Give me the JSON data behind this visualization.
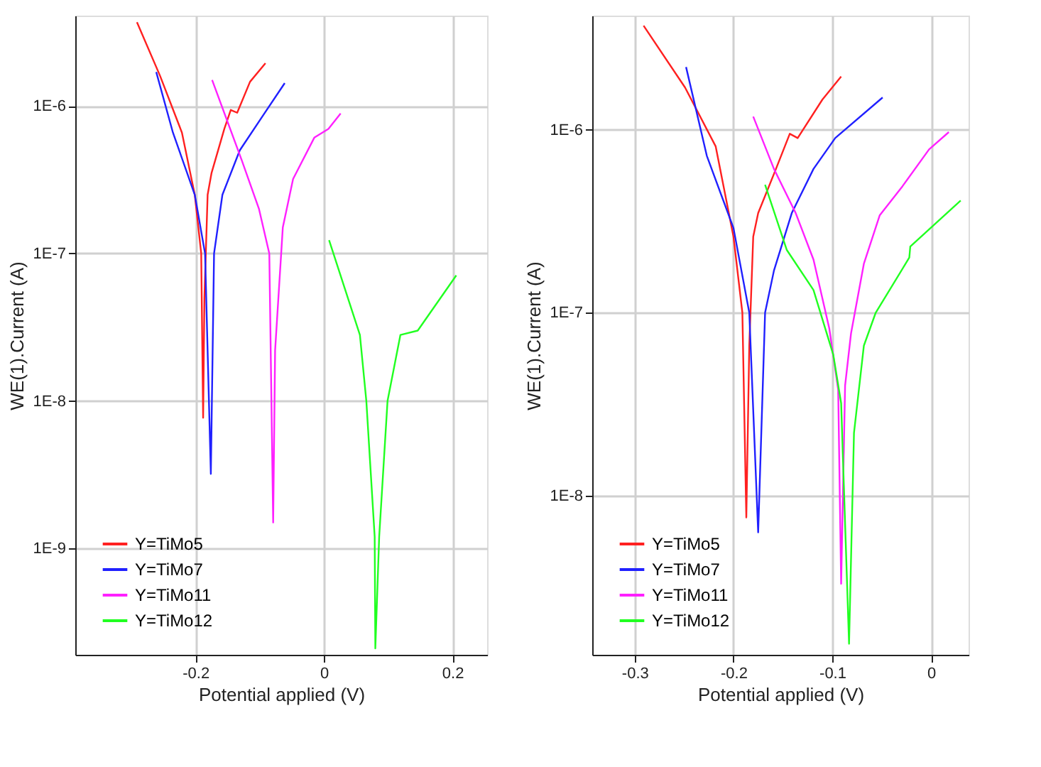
{
  "chart_data": [
    {
      "type": "line",
      "xlabel": "Potential applied (V)",
      "ylabel": "WE(1).Current (A)",
      "log": "y",
      "grid": true,
      "legend": "bottom left",
      "xlim": [
        -0.387,
        0.254
      ],
      "ylim": [
        1.9e-10,
        4.1e-06
      ],
      "xticks": [
        -0.2,
        0,
        0.2
      ],
      "yticks": [
        {
          "value": 1e-09,
          "label": "1E-9"
        },
        {
          "value": 1e-08,
          "label": "1E-8"
        },
        {
          "value": 1e-07,
          "label": "1E-7"
        },
        {
          "value": 1e-06,
          "label": "1E-6"
        }
      ],
      "series": [
        {
          "name": "Y=TiMo5",
          "color": "#ff2020",
          "x": [
            -0.291,
            -0.255,
            -0.221,
            -0.201,
            -0.191,
            -0.188,
            -0.186,
            -0.181,
            -0.175,
            -0.155,
            -0.145,
            -0.135,
            -0.115,
            -0.091
          ],
          "values": [
            3.7e-06,
            1.6e-06,
            6.6e-07,
            2.5e-07,
            1e-07,
            7.7e-09,
            5e-08,
            2.5e-07,
            3.5e-07,
            7e-07,
            9.4e-07,
            9e-07,
            1.46e-06,
            1.95e-06
          ]
        },
        {
          "name": "Y=TiMo7",
          "color": "#2020ff",
          "x": [
            -0.261,
            -0.235,
            -0.201,
            -0.185,
            -0.176,
            -0.171,
            -0.158,
            -0.131,
            -0.095,
            -0.061
          ],
          "values": [
            1.7e-06,
            6.6e-07,
            2.5e-07,
            1e-07,
            3.2e-09,
            1e-07,
            2.5e-07,
            5e-07,
            8.6e-07,
            1.43e-06
          ]
        },
        {
          "name": "Y=TiMo11",
          "color": "#ff20ff",
          "x": [
            -0.174,
            -0.128,
            -0.101,
            -0.085,
            -0.079,
            -0.076,
            -0.064,
            -0.048,
            -0.015,
            0.007,
            0.026
          ],
          "values": [
            1.5e-06,
            4.3e-07,
            2e-07,
            1e-07,
            1.5e-09,
            2.2e-08,
            1.5e-07,
            3.2e-07,
            6.1e-07,
            7e-07,
            8.9e-07
          ]
        },
        {
          "name": "Y=TiMo12",
          "color": "#20ff20",
          "x": [
            0.008,
            0.056,
            0.066,
            0.079,
            0.08,
            0.086,
            0.099,
            0.119,
            0.146,
            0.206
          ],
          "values": [
            1.23e-07,
            2.8e-08,
            1e-08,
            1.2e-09,
            2.1e-10,
            1.2e-09,
            1e-08,
            2.8e-08,
            3e-08,
            7.1e-08
          ]
        }
      ]
    },
    {
      "type": "line",
      "xlabel": "Potential applied (V)",
      "ylabel": "WE(1).Current (A)",
      "log": "y",
      "grid": true,
      "legend": "bottom left",
      "xlim": [
        -0.343,
        0.038
      ],
      "ylim": [
        1.35e-09,
        4.2e-06
      ],
      "xticks": [
        -0.3,
        -0.2,
        -0.1,
        0
      ],
      "yticks": [
        {
          "value": 1e-08,
          "label": "1E-8"
        },
        {
          "value": 1e-07,
          "label": "1E-7"
        },
        {
          "value": 1e-06,
          "label": "1E-6"
        }
      ],
      "series": [
        {
          "name": "Y=TiMo5",
          "color": "#ff2020",
          "x": [
            -0.291,
            -0.249,
            -0.218,
            -0.2,
            -0.191,
            -0.187,
            -0.184,
            -0.18,
            -0.175,
            -0.157,
            -0.143,
            -0.135,
            -0.11,
            -0.091
          ],
          "values": [
            3.7e-06,
            1.7e-06,
            8.1e-07,
            2.6e-07,
            1e-07,
            7.6e-09,
            6.6e-08,
            2.6e-07,
            3.5e-07,
            6.1e-07,
            9.5e-07,
            9e-07,
            1.46e-06,
            1.95e-06
          ]
        },
        {
          "name": "Y=TiMo7",
          "color": "#2020ff",
          "x": [
            -0.248,
            -0.227,
            -0.2,
            -0.184,
            -0.175,
            -0.168,
            -0.159,
            -0.141,
            -0.119,
            -0.097,
            -0.049
          ],
          "values": [
            2.2e-06,
            7.2e-07,
            2.9e-07,
            1e-07,
            6.3e-09,
            1e-07,
            1.7e-07,
            3.5e-07,
            6.1e-07,
            9e-07,
            1.5e-06
          ]
        },
        {
          "name": "Y=TiMo11",
          "color": "#ff20ff",
          "x": [
            -0.18,
            -0.159,
            -0.137,
            -0.119,
            -0.103,
            -0.094,
            -0.091,
            -0.087,
            -0.081,
            -0.068,
            -0.052,
            -0.029,
            -0.002,
            0.018
          ],
          "values": [
            1.18e-06,
            6.1e-07,
            3.5e-07,
            1.95e-07,
            8.2e-08,
            3.8e-08,
            3.3e-09,
            4e-08,
            7.7e-08,
            1.85e-07,
            3.4e-07,
            4.9e-07,
            7.8e-07,
            9.7e-07
          ]
        },
        {
          "name": "Y=TiMo12",
          "color": "#20ff20",
          "x": [
            -0.168,
            -0.146,
            -0.119,
            -0.099,
            -0.091,
            -0.083,
            -0.078,
            -0.068,
            -0.056,
            -0.022,
            -0.021,
            0.03
          ],
          "values": [
            5e-07,
            2.2e-07,
            1.33e-07,
            5.9e-08,
            3.2e-08,
            1.55e-09,
            2.2e-08,
            6.6e-08,
            1e-07,
            2e-07,
            2.3e-07,
            4.1e-07
          ]
        }
      ]
    }
  ]
}
